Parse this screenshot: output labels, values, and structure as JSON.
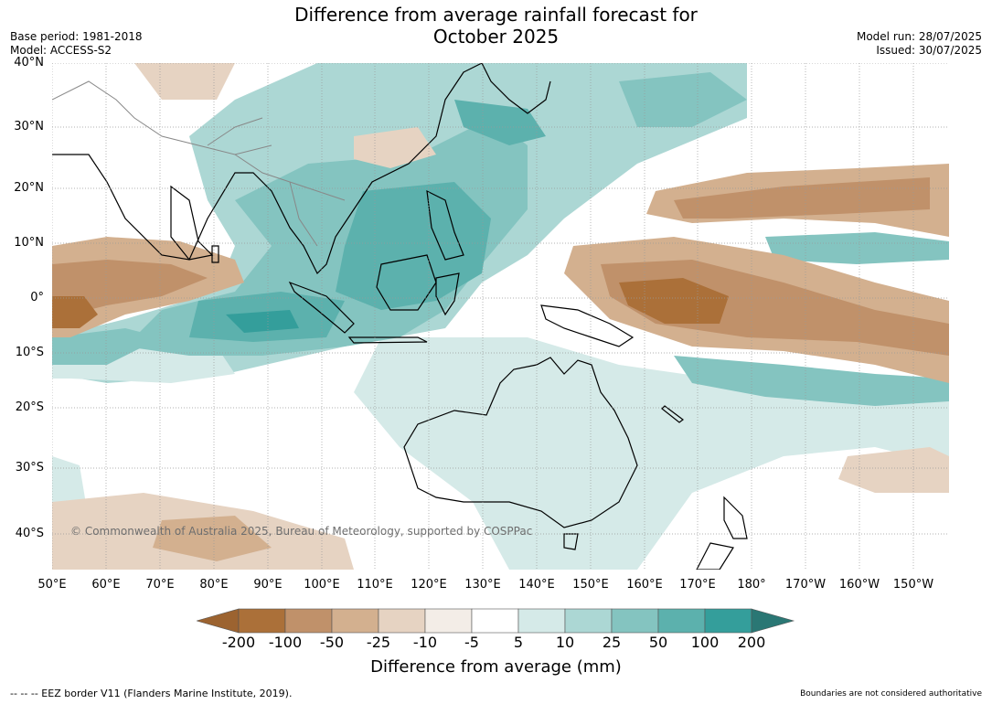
{
  "title_line1": "Difference from average rainfall forecast for",
  "title_line2": "October 2025",
  "base_period": "Base period: 1981-2018",
  "model": "Model: ACCESS-S2",
  "model_run": "Model run: 28/07/2025",
  "issued": "Issued: 30/07/2025",
  "lat_labels": [
    "40°N",
    "30°N",
    "20°N",
    "10°N",
    "0°",
    "10°S",
    "20°S",
    "30°S",
    "40°S"
  ],
  "lon_labels": [
    "50°E",
    "60°E",
    "70°E",
    "80°E",
    "90°E",
    "100°E",
    "110°E",
    "120°E",
    "130°E",
    "140°E",
    "150°E",
    "160°E",
    "170°E",
    "180°",
    "170°W",
    "160°W",
    "150°W"
  ],
  "copyright": "© Commonwealth of Australia 2025, Bureau of Meteorology, supported by COSPPac",
  "colorbar": {
    "ticks": [
      "-200",
      "-100",
      "-50",
      "-25",
      "-10",
      "-5",
      "5",
      "10",
      "25",
      "50",
      "100",
      "200"
    ],
    "colors": [
      "#9c6330",
      "#ab7039",
      "#c0916a",
      "#d3b08f",
      "#e6d3c2",
      "#f3ede7",
      "#ffffff",
      "#d5eae8",
      "#acd7d4",
      "#84c4c0",
      "#5cb1ad",
      "#349e9b",
      "#2a7774"
    ],
    "label": "Difference from average (mm)"
  },
  "footnote_left": "--  --  -- EEZ border V11 (Flanders Marine Institute, 2019).",
  "footnote_right": "Boundaries are not considered authoritative"
}
